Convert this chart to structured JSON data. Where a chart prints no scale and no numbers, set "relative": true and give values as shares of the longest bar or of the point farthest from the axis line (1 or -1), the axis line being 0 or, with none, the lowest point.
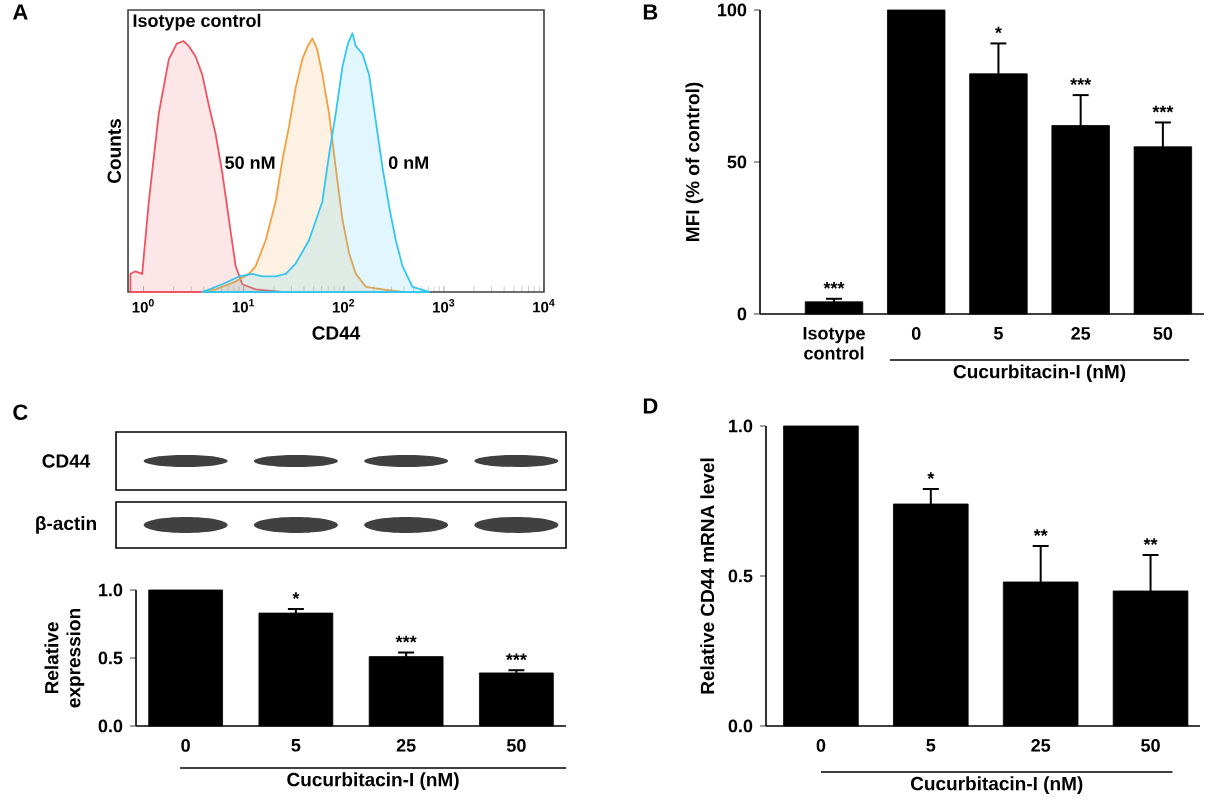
{
  "chart_data": [
    {
      "type": "area",
      "title": "A",
      "xlabel": "CD44",
      "ylabel": "Counts",
      "log": "x",
      "relative": true,
      "xlim": [
        0.7,
        10000
      ],
      "xticks": [
        {
          "value": 1,
          "label": "10$^{0}$"
        },
        {
          "value": 10,
          "label": "10$^{1}$"
        },
        {
          "value": 100,
          "label": "10$^{2}$"
        },
        {
          "value": 1000,
          "label": "10$^{3}$"
        },
        {
          "value": 10000,
          "label": "10$^{4}$"
        }
      ],
      "series": [
        {
          "name": "Isotype control",
          "color": "#ee5560",
          "x": [
            0.74,
            0.83,
            0.97,
            1.13,
            1.42,
            1.79,
            2.15,
            2.51,
            2.84,
            3.31,
            3.86,
            4.5,
            5.25,
            6.12,
            7.13,
            8.32,
            9.7,
            13.2,
            24.4
          ],
          "values": [
            0.07,
            0.08,
            0.07,
            0.35,
            0.69,
            0.9,
            0.96,
            0.97,
            0.95,
            0.91,
            0.84,
            0.72,
            0.61,
            0.46,
            0.28,
            0.1,
            0.03,
            0.01,
            0
          ]
        },
        {
          "name": "50 nM",
          "color": "#f4a040",
          "x": [
            3.86,
            5.25,
            8.32,
            11.3,
            13.2,
            16.6,
            20.9,
            24.4,
            28.4,
            33.1,
            38.6,
            43.6,
            48.6,
            54.1,
            61.2,
            71.3,
            83.2,
            97,
            113,
            132,
            166,
            244,
            386
          ],
          "values": [
            0,
            0.01,
            0.04,
            0.07,
            0.1,
            0.2,
            0.35,
            0.51,
            0.64,
            0.79,
            0.9,
            0.95,
            0.98,
            0.94,
            0.84,
            0.69,
            0.48,
            0.28,
            0.15,
            0.07,
            0.02,
            0.01,
            0
          ]
        },
        {
          "name": "0 nM",
          "color": "#35c6f0",
          "x": [
            3.86,
            6.12,
            8.98,
            12.2,
            15.4,
            20.9,
            26.3,
            33.1,
            45,
            61.2,
            71.3,
            83.2,
            97,
            110,
            122,
            132,
            154,
            179,
            209,
            244,
            284,
            331,
            386,
            486,
            713
          ],
          "values": [
            0,
            0.03,
            0.06,
            0.07,
            0.06,
            0.06,
            0.07,
            0.11,
            0.2,
            0.35,
            0.53,
            0.69,
            0.87,
            0.96,
            1,
            0.95,
            0.92,
            0.84,
            0.66,
            0.48,
            0.33,
            0.2,
            0.1,
            0.02,
            0
          ]
        }
      ]
    },
    {
      "type": "bar",
      "title": "B",
      "ylabel": "MFI (% of control)",
      "xlabel": "Cucurbitacin-I (nM)",
      "categories": [
        "Isotype control",
        "0",
        "5",
        "25",
        "50"
      ],
      "values": [
        4,
        100,
        79,
        62,
        55
      ],
      "errors": [
        1,
        null,
        10,
        10,
        8
      ],
      "color": "#000000",
      "ylim": [
        0,
        100
      ],
      "yticks": [
        0,
        50,
        100
      ],
      "annotations": [
        {
          "text": "***",
          "x": "Isotype control",
          "y": 5
        },
        {
          "text": "*",
          "x": "5",
          "y": 89
        },
        {
          "text": "***",
          "x": "25",
          "y": 72
        },
        {
          "text": "***",
          "x": "50",
          "y": 63
        }
      ]
    },
    {
      "type": "bar",
      "title": "C",
      "ylabel": "Relative expression",
      "xlabel": "Cucurbitacin-I (nM)",
      "categories": [
        "0",
        "5",
        "25",
        "50"
      ],
      "values": [
        1,
        0.83,
        0.51,
        0.39
      ],
      "errors": [
        null,
        0.03,
        0.03,
        0.02
      ],
      "color": "#000000",
      "ylim": [
        0,
        1
      ],
      "yticks": [
        {
          "value": 0,
          "label": "0.0"
        },
        {
          "value": 0.5,
          "label": "0.5"
        },
        {
          "value": 1,
          "label": "1.0"
        }
      ],
      "annotations": [
        {
          "text": "*",
          "x": "5",
          "y": 0.86
        },
        {
          "text": "***",
          "x": "25",
          "y": 0.54
        },
        {
          "text": "***",
          "x": "50",
          "y": 0.41
        },
        "CD44",
        "β-actin"
      ]
    },
    {
      "type": "bar",
      "title": "D",
      "ylabel": "Relative CD44 mRNA level",
      "xlabel": "Cucurbitacin-I (nM)",
      "categories": [
        "0",
        "5",
        "25",
        "50"
      ],
      "values": [
        1,
        0.74,
        0.48,
        0.45
      ],
      "errors": [
        null,
        0.05,
        0.12,
        0.12
      ],
      "color": "#000000",
      "ylim": [
        0,
        1
      ],
      "yticks": [
        {
          "value": 0,
          "label": "0.0"
        },
        {
          "value": 0.5,
          "label": "0.5"
        },
        {
          "value": 1,
          "label": "1.0"
        }
      ],
      "annotations": [
        {
          "text": "*",
          "x": "5",
          "y": 0.79
        },
        {
          "text": "**",
          "x": "25",
          "y": 0.6
        },
        {
          "text": "**",
          "x": "50",
          "y": 0.57
        }
      ]
    }
  ]
}
